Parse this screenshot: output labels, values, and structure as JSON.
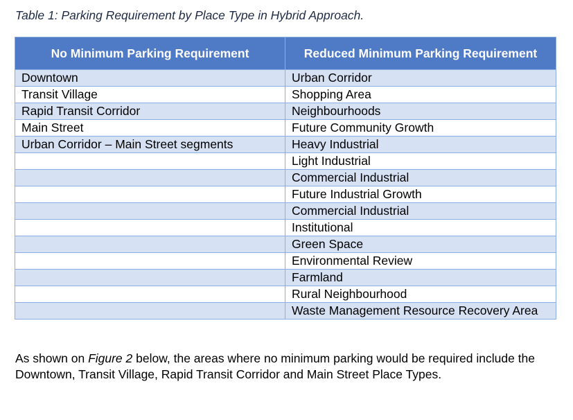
{
  "caption": "Table 1: Parking Requirement by Place Type in Hybrid Approach.",
  "table": {
    "headers": [
      "No Minimum Parking Requirement",
      "Reduced Minimum Parking Requirement"
    ],
    "rows": [
      [
        "Downtown",
        "Urban Corridor"
      ],
      [
        "Transit Village",
        "Shopping Area"
      ],
      [
        "Rapid Transit Corridor",
        "Neighbourhoods"
      ],
      [
        "Main Street",
        "Future Community Growth"
      ],
      [
        "Urban Corridor – Main Street segments",
        "Heavy Industrial"
      ],
      [
        "",
        "Light Industrial"
      ],
      [
        "",
        "Commercial Industrial"
      ],
      [
        "",
        "Future Industrial Growth"
      ],
      [
        "",
        "Commercial Industrial"
      ],
      [
        "",
        "Institutional"
      ],
      [
        "",
        "Green Space"
      ],
      [
        "",
        "Environmental Review"
      ],
      [
        "",
        "Farmland"
      ],
      [
        "",
        "Rural Neighbourhood"
      ],
      [
        "",
        "Waste Management Resource Recovery Area"
      ]
    ]
  },
  "paragraph": {
    "before": "As shown on ",
    "figure_ref": "Figure 2",
    "after": " below, the areas where no minimum parking would be required include the Downtown, Transit Village, Rapid Transit Corridor and Main Street Place Types."
  },
  "colors": {
    "header_bg": "#4f7ac6",
    "band_bg": "#d6e1f3",
    "border": "#8aaee0"
  }
}
